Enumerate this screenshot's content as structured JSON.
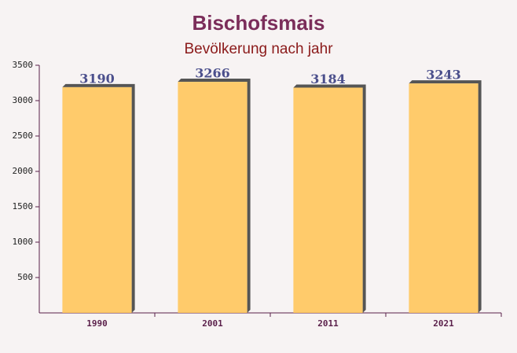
{
  "chart_data": {
    "type": "bar",
    "title": "Bischofsmais",
    "subtitle": "Bevölkerung nach jahr",
    "categories": [
      "1990",
      "2001",
      "2011",
      "2021"
    ],
    "values": [
      3190,
      3266,
      3184,
      3243
    ],
    "color": "#ffc65c",
    "ylim": [
      0,
      3500
    ],
    "yticks": [
      500,
      1000,
      1500,
      2000,
      2500,
      3000,
      3500
    ],
    "grid": false
  }
}
